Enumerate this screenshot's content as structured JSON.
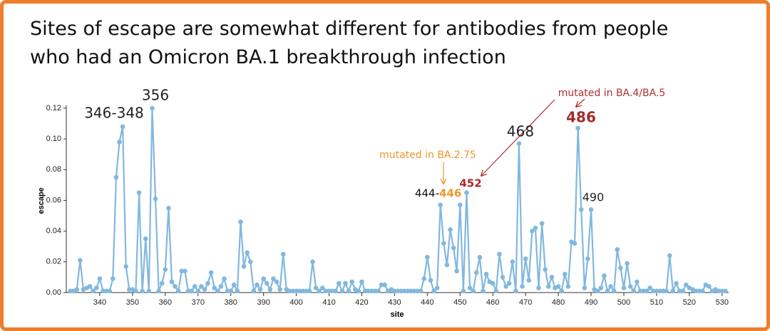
{
  "chart_data": {
    "type": "line",
    "title": "Sites of escape are somewhat different for antibodies from people who had an Omicron BA.1 breakthrough infection",
    "xlabel": "site",
    "ylabel": "escape",
    "x": [
      331,
      332,
      333,
      334,
      335,
      336,
      337,
      338,
      339,
      340,
      341,
      342,
      343,
      344,
      345,
      346,
      347,
      348,
      349,
      350,
      351,
      352,
      353,
      354,
      355,
      356,
      357,
      358,
      359,
      360,
      361,
      362,
      363,
      364,
      365,
      366,
      367,
      368,
      369,
      370,
      371,
      372,
      373,
      374,
      375,
      376,
      377,
      378,
      379,
      380,
      381,
      382,
      383,
      384,
      385,
      386,
      387,
      388,
      389,
      390,
      391,
      392,
      393,
      394,
      395,
      396,
      397,
      398,
      399,
      400,
      401,
      402,
      403,
      404,
      405,
      406,
      407,
      408,
      409,
      410,
      411,
      412,
      413,
      414,
      415,
      416,
      417,
      418,
      419,
      420,
      421,
      422,
      423,
      424,
      425,
      426,
      427,
      428,
      429,
      430,
      431,
      432,
      433,
      434,
      435,
      436,
      437,
      438,
      439,
      440,
      441,
      442,
      443,
      444,
      445,
      446,
      447,
      448,
      449,
      450,
      451,
      452,
      453,
      454,
      455,
      456,
      457,
      458,
      459,
      460,
      461,
      462,
      463,
      464,
      465,
      466,
      467,
      468,
      469,
      470,
      471,
      472,
      473,
      474,
      475,
      476,
      477,
      478,
      479,
      480,
      481,
      482,
      483,
      484,
      485,
      486,
      487,
      488,
      489,
      490,
      491,
      492,
      493,
      494,
      495,
      496,
      497,
      498,
      499,
      500,
      501,
      502,
      503,
      504,
      505,
      506,
      507,
      508,
      509,
      510,
      511,
      512,
      513,
      514,
      515,
      516,
      517,
      518,
      519,
      520,
      521,
      522,
      523,
      524,
      525,
      526,
      527,
      528,
      529,
      530,
      531
    ],
    "series": [
      {
        "name": "escape",
        "color": "#82b8de",
        "values": [
          0.001,
          0.001,
          0.002,
          0.021,
          0.002,
          0.003,
          0.004,
          0.001,
          0.003,
          0.009,
          0.001,
          0.001,
          0.001,
          0.009,
          0.075,
          0.098,
          0.108,
          0.017,
          0.002,
          0.002,
          0.001,
          0.065,
          0.001,
          0.035,
          0.001,
          0.12,
          0.061,
          0.001,
          0.006,
          0.015,
          0.055,
          0.007,
          0.004,
          0.001,
          0.014,
          0.014,
          0.001,
          0.001,
          0.004,
          0.001,
          0.004,
          0.002,
          0.006,
          0.013,
          0.003,
          0.001,
          0.004,
          0.009,
          0.001,
          0.001,
          0.005,
          0.001,
          0.046,
          0.017,
          0.026,
          0.02,
          0.001,
          0.005,
          0.002,
          0.009,
          0.006,
          0.002,
          0.009,
          0.007,
          0.002,
          0.025,
          0.002,
          0.001,
          0.001,
          0.001,
          0.001,
          0.001,
          0.001,
          0.001,
          0.02,
          0.003,
          0.001,
          0.003,
          0.001,
          0.001,
          0.001,
          0.001,
          0.006,
          0.001,
          0.006,
          0.001,
          0.007,
          0.002,
          0.001,
          0.007,
          0.001,
          0.001,
          0.001,
          0.001,
          0.001,
          0.005,
          0.005,
          0.001,
          0.002,
          0.001,
          0.001,
          0.001,
          0.001,
          0.001,
          0.001,
          0.001,
          0.001,
          0.001,
          0.009,
          0.023,
          0.008,
          0.001,
          0.003,
          0.057,
          0.032,
          0.018,
          0.041,
          0.029,
          0.014,
          0.057,
          0.001,
          0.065,
          0.003,
          0.001,
          0.013,
          0.023,
          0.001,
          0.012,
          0.007,
          0.006,
          0.001,
          0.025,
          0.01,
          0.004,
          0.006,
          0.02,
          0.001,
          0.097,
          0.004,
          0.022,
          0.008,
          0.04,
          0.042,
          0.003,
          0.045,
          0.015,
          0.004,
          0.01,
          0.003,
          0.004,
          0.001,
          0.012,
          0.004,
          0.033,
          0.032,
          0.107,
          0.054,
          0.003,
          0.022,
          0.054,
          0.002,
          0.001,
          0.003,
          0.011,
          0.001,
          0.004,
          0.001,
          0.028,
          0.016,
          0.003,
          0.019,
          0.004,
          0.001,
          0.007,
          0.001,
          0.001,
          0.001,
          0.003,
          0.001,
          0.001,
          0.001,
          0.001,
          0.001,
          0.024,
          0.001,
          0.006,
          0.001,
          0.001,
          0.005,
          0.003,
          0.002,
          0.001,
          0.001,
          0.001,
          0.005,
          0.004,
          0.001,
          0.002,
          0.001,
          0.001,
          0.001
        ]
      }
    ],
    "xlim": [
      330,
      532
    ],
    "ylim": [
      0,
      0.12
    ],
    "xticks": [
      340,
      350,
      360,
      370,
      380,
      390,
      400,
      410,
      420,
      430,
      440,
      450,
      460,
      470,
      480,
      490,
      500,
      510,
      520,
      530
    ],
    "yticks": [
      {
        "value": 0,
        "label": "0.00"
      },
      {
        "value": 0.02,
        "label": "0.02"
      },
      {
        "value": 0.04,
        "label": "0.04"
      },
      {
        "value": 0.06,
        "label": "0.06"
      },
      {
        "value": 0.08,
        "label": "0.08"
      },
      {
        "value": 0.1,
        "label": "0.10"
      },
      {
        "value": 0.12,
        "label": "0.12"
      }
    ],
    "annotations": [
      {
        "text": "346-348"
      },
      {
        "text": "356"
      },
      {
        "text": "468"
      },
      {
        "text": "486"
      },
      {
        "text": "490"
      },
      {
        "text": "444-"
      },
      {
        "text": "446"
      },
      {
        "text": "452"
      },
      {
        "text": "mutated in BA.2.75"
      },
      {
        "text": "mutated in BA.4/BA.5"
      }
    ]
  }
}
